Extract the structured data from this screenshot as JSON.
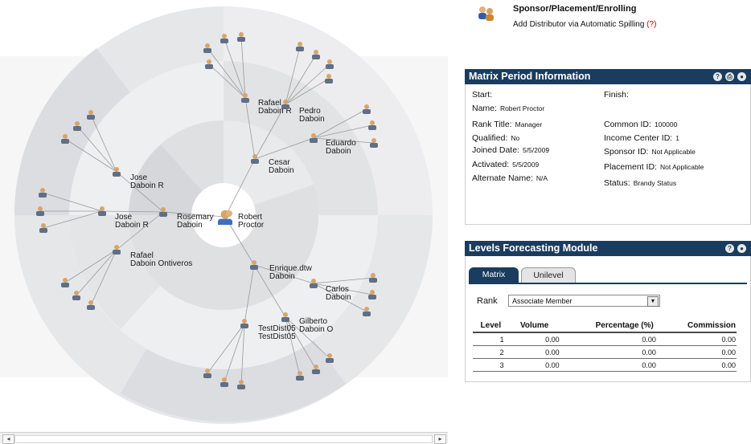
{
  "tree": {
    "root": {
      "label": "Robert\nProctor"
    },
    "level1": [
      {
        "label": "Cesar\nDaboin"
      },
      {
        "label": "Rosemary\nDaboin"
      },
      {
        "label": "Enrique.dtw\nDaboin"
      }
    ],
    "level2": [
      {
        "label": "Rafael\nDaboin R"
      },
      {
        "label": "Pedro\nDaboin"
      },
      {
        "label": "Eduardo\nDaboin"
      },
      {
        "label": "Jose\nDaboin R"
      },
      {
        "label": "Jose\nDaboin R"
      },
      {
        "label": "Rafael\nDaboin Ontiveros"
      },
      {
        "label": "Carlos\nDaboin"
      },
      {
        "label": "Gilberto\nDaboin O"
      },
      {
        "label": "TestDist05\nTestDist05"
      }
    ]
  },
  "header": {
    "title": "Sponsor/Placement/Enrolling",
    "subtitle": "Add Distributor via Automatic Spilling",
    "help_mark": "(?)"
  },
  "matrix_period": {
    "title": "Matrix Period Information",
    "icons": [
      "help-icon",
      "print-icon",
      "close-icon"
    ],
    "left": [
      {
        "label": "Start:",
        "value": ""
      },
      {
        "label": "Name:",
        "value": "Robert Proctor"
      },
      {
        "label": "Rank Title:",
        "value": "Manager"
      },
      {
        "label": "Qualified:",
        "value": "No"
      },
      {
        "label": "Joined Date:",
        "value": "5/5/2009"
      },
      {
        "label": "Activated:",
        "value": "5/5/2009"
      },
      {
        "label": "Alternate Name:",
        "value": "N/A"
      }
    ],
    "right": [
      {
        "label": "Finish:",
        "value": ""
      },
      {
        "label": "Common ID:",
        "value": "100000"
      },
      {
        "label": "Income Center ID:",
        "value": "1"
      },
      {
        "label": "Sponsor ID:",
        "value": "Not Applicable"
      },
      {
        "label": "Placement ID:",
        "value": "Not Applicable"
      },
      {
        "label": "Status:",
        "value": "Brandy Status"
      }
    ]
  },
  "levels_forecast": {
    "title": "Levels Forecasting Module",
    "icons": [
      "help-icon",
      "close-icon"
    ],
    "tabs": [
      "Matrix",
      "Unilevel"
    ],
    "active_tab": "Matrix",
    "rank_label": "Rank",
    "rank_value": "Associate Member",
    "columns": [
      "Level",
      "Volume",
      "Percentage (%)",
      "Commission"
    ],
    "rows": [
      [
        "1",
        "0.00",
        "0.00",
        "0.00"
      ],
      [
        "2",
        "0.00",
        "0.00",
        "0.00"
      ],
      [
        "3",
        "0.00",
        "0.00",
        "0.00"
      ]
    ]
  },
  "colors": {
    "panel_bar": "#1a3c5e",
    "ring_dark": "#dcdde0",
    "ring_light": "#ebebed",
    "help_red": "#d20000"
  }
}
